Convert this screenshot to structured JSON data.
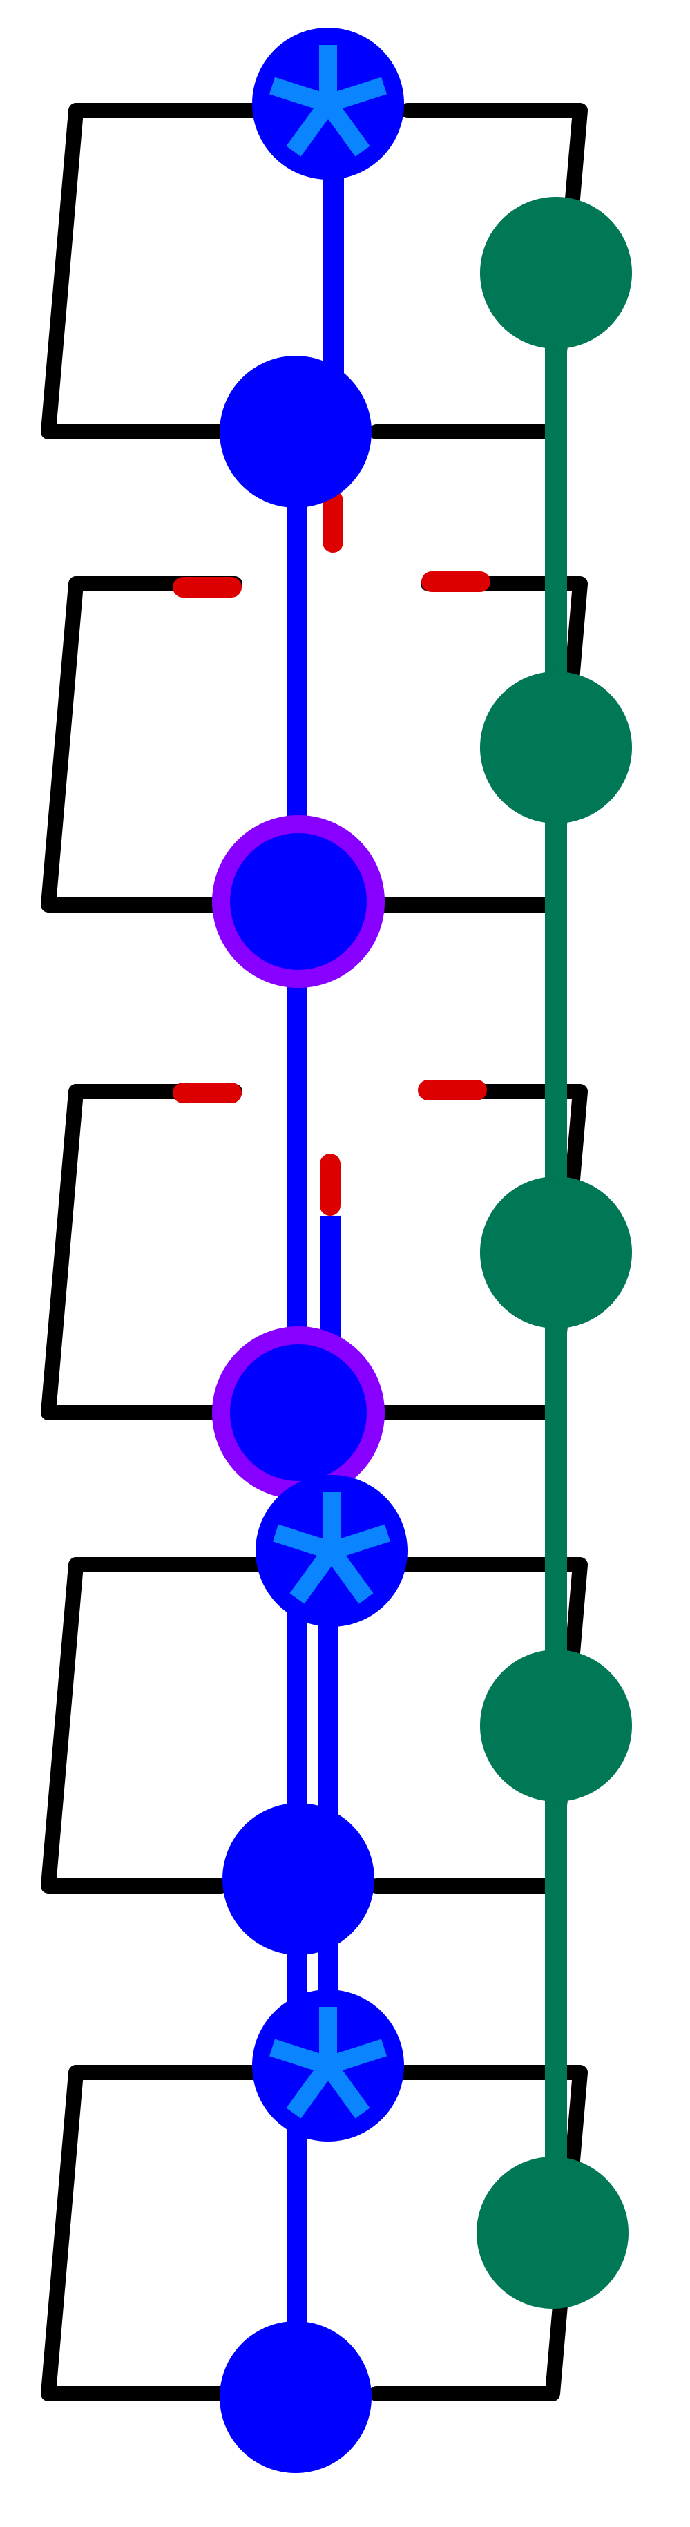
{
  "colors": {
    "background": "#ffffff",
    "frame": "#000000",
    "blue_chain": "#0000ff",
    "green_chain": "#007755",
    "star": "#0a84ff",
    "ring": "#8800ff",
    "red_mark": "#dd0000"
  },
  "nodes": [
    {
      "type": "star-node",
      "icon": "asterisk-icon"
    },
    {
      "type": "blue-node"
    },
    {
      "type": "ringed-node"
    },
    {
      "type": "ringed-node"
    },
    {
      "type": "star-node",
      "icon": "asterisk-icon"
    },
    {
      "type": "blue-node"
    },
    {
      "type": "star-node",
      "icon": "asterisk-icon"
    },
    {
      "type": "blue-node"
    }
  ],
  "green_nodes_count": 5,
  "red_marks_count": 6
}
